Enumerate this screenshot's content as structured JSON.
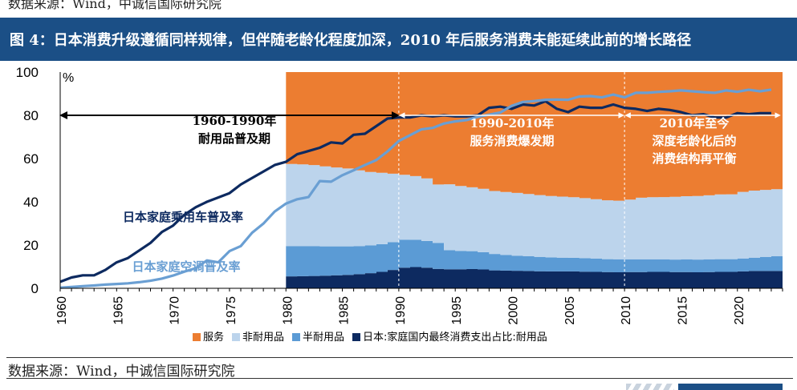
{
  "header": {
    "source_cut": "数据来源：Wind，中诚信国际研究院",
    "title": "图 4：日本消费升级遵循同样规律，但伴随老龄化程度加深，2010 年后服务消费未能延续此前的增长路径"
  },
  "footer": {
    "source": "数据来源：Wind，中诚信国际研究院"
  },
  "chart_data": {
    "type": "area",
    "y_unit": "%",
    "ylim": [
      0,
      100
    ],
    "yticks": [
      0,
      20,
      40,
      60,
      80,
      100
    ],
    "xlim": [
      1960,
      2024
    ],
    "xticks": [
      1960,
      1965,
      1970,
      1975,
      1980,
      1985,
      1990,
      1995,
      2000,
      2005,
      2010,
      2015,
      2020
    ],
    "grid": false,
    "legend_position": "bottom",
    "colors": {
      "services": "#ec7d31",
      "nondurable": "#bcd4ec",
      "semidurable": "#5b9bd5",
      "durable": "#0d2a60",
      "car_line": "#0d2a60",
      "ac_line": "#6a9fd3",
      "arrow": "#000000",
      "dashed_divider": "#ffffff"
    },
    "stacked_area": {
      "years": [
        1980,
        1981,
        1982,
        1983,
        1984,
        1985,
        1986,
        1987,
        1988,
        1989,
        1990,
        1991,
        1992,
        1993,
        1994,
        1995,
        1996,
        1997,
        1998,
        1999,
        2000,
        2001,
        2002,
        2003,
        2004,
        2005,
        2006,
        2007,
        2008,
        2009,
        2010,
        2011,
        2012,
        2013,
        2014,
        2015,
        2016,
        2017,
        2018,
        2019,
        2020,
        2021,
        2022,
        2023
      ],
      "series": [
        {
          "name": "日本:家庭国内最终消费支出占比:耐用品",
          "key": "durable",
          "values": [
            5.5,
            5.6,
            5.7,
            5.8,
            6.0,
            6.2,
            6.5,
            7.0,
            7.6,
            8.5,
            9.5,
            9.8,
            9.5,
            9.0,
            8.8,
            8.8,
            8.9,
            8.7,
            8.3,
            8.2,
            8.1,
            8.0,
            7.9,
            7.8,
            7.8,
            7.8,
            7.7,
            7.6,
            7.5,
            7.4,
            7.5,
            7.5,
            7.6,
            7.6,
            7.5,
            7.5,
            7.4,
            7.5,
            7.6,
            7.6,
            7.8,
            8.0,
            8.0,
            8.0
          ]
        },
        {
          "name": "半耐用品",
          "key": "semidurable",
          "values": [
            14.0,
            13.9,
            13.8,
            13.6,
            13.4,
            13.2,
            13.0,
            12.8,
            12.8,
            12.8,
            13.0,
            12.6,
            12.4,
            12.0,
            8.8,
            8.5,
            8.3,
            8.0,
            7.6,
            7.3,
            7.0,
            6.8,
            6.6,
            6.5,
            6.4,
            6.3,
            6.2,
            6.1,
            6.0,
            6.0,
            5.9,
            5.9,
            5.8,
            5.8,
            5.8,
            5.9,
            5.9,
            5.9,
            5.9,
            5.9,
            6.0,
            6.2,
            6.5,
            6.8
          ]
        },
        {
          "name": "非耐用品",
          "key": "nondurable",
          "values": [
            38.0,
            37.8,
            37.5,
            37.0,
            36.5,
            36.0,
            35.0,
            34.0,
            33.0,
            31.7,
            30.0,
            29.5,
            28.9,
            27.0,
            30.5,
            30.0,
            29.5,
            29.3,
            29.1,
            29.0,
            29.0,
            28.8,
            28.6,
            28.4,
            28.2,
            28.0,
            27.8,
            27.5,
            27.2,
            27.1,
            27.6,
            28.5,
            28.7,
            28.8,
            29.0,
            29.2,
            29.4,
            29.6,
            29.9,
            30.0,
            30.8,
            31.0,
            31.0,
            31.0
          ]
        },
        {
          "name": "服务",
          "key": "services",
          "values": [
            42.5,
            42.7,
            43.0,
            43.6,
            44.1,
            44.6,
            45.5,
            46.2,
            46.6,
            47.0,
            47.5,
            48.1,
            49.2,
            52.0,
            51.9,
            52.7,
            53.3,
            54.0,
            55.0,
            55.5,
            55.9,
            56.4,
            56.9,
            57.3,
            57.6,
            57.9,
            58.3,
            58.8,
            59.3,
            59.5,
            59.0,
            58.1,
            57.9,
            57.8,
            57.7,
            57.4,
            57.3,
            57.0,
            56.6,
            56.5,
            55.4,
            54.8,
            54.5,
            54.2
          ]
        }
      ]
    },
    "lines": [
      {
        "name": "日本家庭乘用车普及率",
        "key": "car_line",
        "x": [
          1960,
          1961,
          1962,
          1963,
          1964,
          1965,
          1966,
          1967,
          1968,
          1969,
          1970,
          1971,
          1972,
          1973,
          1974,
          1975,
          1976,
          1977,
          1978,
          1979,
          1980,
          1981,
          1982,
          1983,
          1984,
          1985,
          1986,
          1987,
          1988,
          1989,
          1990,
          1991,
          1992,
          1993,
          1994,
          1995,
          1996,
          1997,
          1998,
          1999,
          2000,
          2001,
          2002,
          2003,
          2004,
          2005,
          2006,
          2007,
          2008,
          2009,
          2010,
          2011,
          2012,
          2013,
          2014,
          2015,
          2016,
          2017,
          2018,
          2019,
          2020,
          2021,
          2022,
          2023
        ],
        "y": [
          3.0,
          5.0,
          6.0,
          6.0,
          8.5,
          12.0,
          14.0,
          17.5,
          21.0,
          26.0,
          29.0,
          34.0,
          37.5,
          40.0,
          42.0,
          44.0,
          48.0,
          51.0,
          54.0,
          57.0,
          58.5,
          62.0,
          63.5,
          65.0,
          67.5,
          67.0,
          71.0,
          71.5,
          75.0,
          78.5,
          79.0,
          79.0,
          80.0,
          79.5,
          80.0,
          79.5,
          79.5,
          80.0,
          83.5,
          84.0,
          83.0,
          85.0,
          84.5,
          86.5,
          83.0,
          81.5,
          84.0,
          83.5,
          83.5,
          85.0,
          83.5,
          83.0,
          82.0,
          83.0,
          82.5,
          81.5,
          80.0,
          80.5,
          79.0,
          79.0,
          81.0,
          80.5,
          81.0,
          81.0
        ]
      },
      {
        "name": "日本家庭空调普及率",
        "key": "ac_line",
        "x": [
          1960,
          1961,
          1962,
          1963,
          1964,
          1965,
          1966,
          1967,
          1968,
          1969,
          1970,
          1971,
          1972,
          1973,
          1974,
          1975,
          1976,
          1977,
          1978,
          1979,
          1980,
          1981,
          1982,
          1983,
          1984,
          1985,
          1986,
          1987,
          1988,
          1989,
          1990,
          1991,
          1992,
          1993,
          1994,
          1995,
          1996,
          1997,
          1998,
          1999,
          2000,
          2001,
          2002,
          2003,
          2004,
          2005,
          2006,
          2007,
          2008,
          2009,
          2010,
          2011,
          2012,
          2013,
          2014,
          2015,
          2016,
          2017,
          2018,
          2019,
          2020,
          2021,
          2022,
          2023
        ],
        "y": [
          0.3,
          0.6,
          1.0,
          1.3,
          1.7,
          2.0,
          2.3,
          2.8,
          3.5,
          4.5,
          5.9,
          7.7,
          9.3,
          12.9,
          12.0,
          17.2,
          19.5,
          25.7,
          29.9,
          35.5,
          39.2,
          41.2,
          42.2,
          49.6,
          49.3,
          52.3,
          54.6,
          57.0,
          59.3,
          63.3,
          68.1,
          70.8,
          73.5,
          74.2,
          76.2,
          77.2,
          77.8,
          79.3,
          80.3,
          81.3,
          84.4,
          86.2,
          86.6,
          87.2,
          87.3,
          87.2,
          88.7,
          88.9,
          88.3,
          89.6,
          88.3,
          90.4,
          90.4,
          90.8,
          91.1,
          91.5,
          91.1,
          90.7,
          90.4,
          91.5,
          90.9,
          91.8,
          91.1,
          91.9
        ]
      }
    ],
    "line_labels": [
      {
        "text": "日本家庭乘用车普及率",
        "key": "car_line"
      },
      {
        "text": "日本家庭空调普及率",
        "key": "ac_line"
      }
    ],
    "annotations": [
      {
        "line1": "1960-1990年",
        "line2": "耐用品普及期",
        "span": [
          1960,
          1990
        ]
      },
      {
        "line1": "1990-2010年",
        "line2": "服务消费爆发期",
        "span": [
          1990,
          2010
        ]
      },
      {
        "line1": "2010年至今",
        "line2": "深度老龄化后的",
        "line3": "消费结构再平衡",
        "span": [
          2010,
          2024
        ]
      }
    ],
    "dividers": [
      1990,
      2010
    ],
    "legend": [
      {
        "label": "服务",
        "key": "services"
      },
      {
        "label": "非耐用品",
        "key": "nondurable"
      },
      {
        "label": "半耐用品",
        "key": "semidurable"
      },
      {
        "label": "日本:家庭国内最终消费支出占比:耐用品",
        "key": "durable"
      }
    ]
  }
}
